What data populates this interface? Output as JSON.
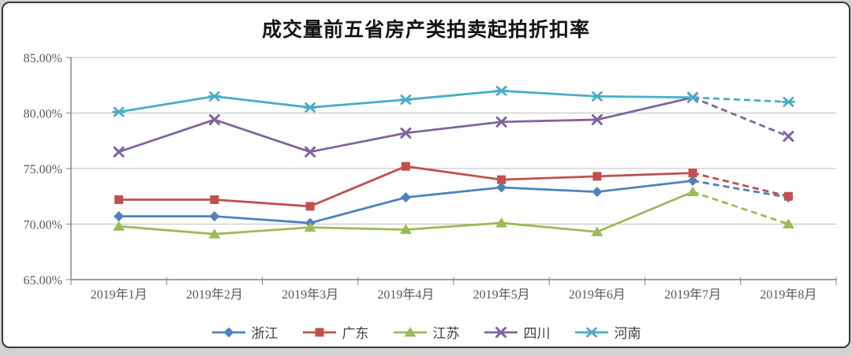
{
  "window": {
    "background": "#d2d2d2",
    "card_background": "#ffffff",
    "card_border": "#3a3a3a"
  },
  "chart_data": {
    "type": "line",
    "title": "成交量前五省房产类拍卖起拍折扣率",
    "categories": [
      "2019年1月",
      "2019年2月",
      "2019年3月",
      "2019年4月",
      "2019年5月",
      "2019年6月",
      "2019年7月",
      "2019年8月"
    ],
    "y_axis": {
      "min": 65,
      "max": 85,
      "step": 5,
      "tick_labels": [
        "85.00%",
        "80.00%",
        "75.00%",
        "70.00%",
        "65.00%"
      ],
      "format": "percent"
    },
    "series": [
      {
        "name": "浙江",
        "key": "zhejiang",
        "color": "#4F81BD",
        "marker": "diamond",
        "values": [
          70.7,
          70.7,
          70.1,
          72.4,
          73.3,
          72.9,
          73.9,
          72.4
        ]
      },
      {
        "name": "广东",
        "key": "guangdong",
        "color": "#C0504D",
        "marker": "square",
        "values": [
          72.2,
          72.2,
          71.6,
          75.2,
          74.0,
          74.3,
          74.6,
          72.5
        ]
      },
      {
        "name": "江苏",
        "key": "jiangsu",
        "color": "#9BBB59",
        "marker": "triangle",
        "values": [
          69.8,
          69.1,
          69.7,
          69.5,
          70.1,
          69.3,
          72.9,
          70.0
        ]
      },
      {
        "name": "四川",
        "key": "sichuan",
        "color": "#8064A2",
        "marker": "x",
        "values": [
          76.5,
          79.4,
          76.5,
          78.2,
          79.2,
          79.4,
          81.4,
          77.9
        ]
      },
      {
        "name": "河南",
        "key": "henan",
        "color": "#4BACC6",
        "marker": "star",
        "values": [
          80.1,
          81.5,
          80.5,
          81.2,
          82.0,
          81.5,
          81.4,
          81.0
        ]
      }
    ],
    "dashed_from_index": 6,
    "grid": true,
    "legend_position": "bottom",
    "gridline_color": "#bfbfbf",
    "axis_color": "#7f7f7f",
    "tick_text_color": "#595959"
  }
}
